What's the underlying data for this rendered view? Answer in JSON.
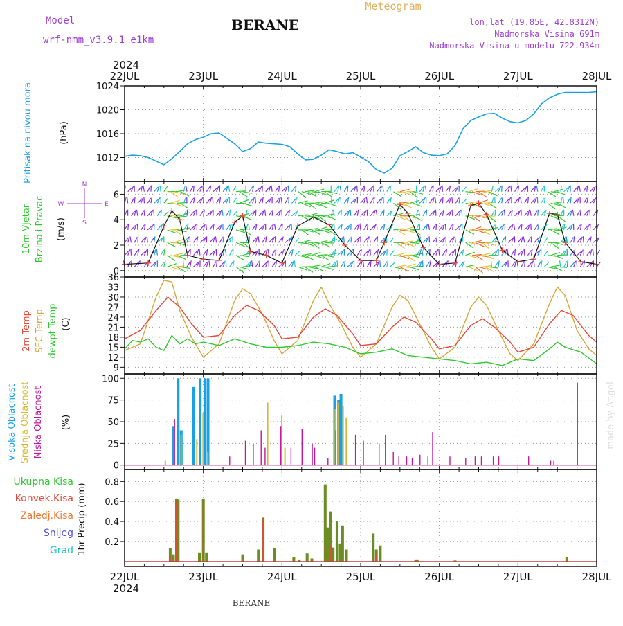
{
  "header": {
    "model_label": "Model",
    "model_name": "wrf-nmm_v3.9.1  e1km",
    "station": "BERANE",
    "meteogram": "Meteogram",
    "lonlat": "lon,lat (19.85E, 42.8312N)",
    "elevation": "Nadmorska Visina 691m",
    "model_elevation": "Nadmorska Visina u modelu 722.934m",
    "year_top": "2024",
    "year_bottom": "2024",
    "footer_station": "BERANE",
    "watermark": "made by Angel"
  },
  "colors": {
    "pressure": "#1aa0e6",
    "temp2m": "#e8473a",
    "sfc": "#d9a53a",
    "dewpt": "#2ec82e",
    "high_cloud": "#1aa0e6",
    "mid_cloud": "#d9b830",
    "low_cloud": "#c0189e",
    "wind_purple": "#8a2be2",
    "precip_total": "#2ec82e",
    "precip_conv": "#e8473a",
    "snow": "#5050e6",
    "graupel": "#20c8c8",
    "header_purple": "#a040d0",
    "header_gold": "#e0b060"
  },
  "chart_data": [
    {
      "type": "line",
      "title": "Pritisak na nivou mora",
      "ylabel": "(hPa)",
      "ylim": [
        1008,
        1024
      ],
      "yticks": [
        1012,
        1016,
        1020,
        1024
      ],
      "x_labels": [
        "22JUL",
        "23JUL",
        "24JUL",
        "25JUL",
        "26JUL",
        "27JUL",
        "28JUL"
      ],
      "series": [
        {
          "x": [
            0,
            0.1,
            0.2,
            0.3,
            0.4,
            0.5,
            0.6,
            0.7,
            0.8,
            0.9,
            1.0,
            1.1,
            1.2,
            1.3,
            1.4,
            1.5,
            1.6,
            1.7,
            1.8,
            1.9,
            2.0,
            2.1,
            2.2,
            2.3,
            2.4,
            2.5,
            2.6,
            2.7,
            2.8,
            2.9,
            3.0,
            3.1,
            3.2,
            3.3,
            3.4,
            3.5,
            3.6,
            3.7,
            3.8,
            3.9,
            4.0,
            4.1,
            4.2,
            4.3,
            4.4,
            4.5,
            4.6,
            4.7,
            4.8,
            4.9,
            5.0,
            5.1,
            5.2,
            5.3,
            5.4,
            5.5,
            5.6,
            5.7,
            5.8,
            5.9,
            6.0
          ],
          "values": [
            1012.2,
            1012.4,
            1012.3,
            1012.0,
            1011.4,
            1010.8,
            1011.8,
            1013.0,
            1014.3,
            1015.0,
            1015.4,
            1016.0,
            1016.1,
            1015.2,
            1014.3,
            1013.0,
            1013.5,
            1014.6,
            1014.4,
            1014.3,
            1014.2,
            1013.8,
            1012.6,
            1011.6,
            1011.7,
            1012.4,
            1013.3,
            1013.0,
            1012.6,
            1012.8,
            1012.1,
            1011.3,
            1010.0,
            1009.4,
            1010.2,
            1012.3,
            1013.0,
            1013.8,
            1012.8,
            1012.4,
            1012.3,
            1012.6,
            1014.0,
            1016.8,
            1018.2,
            1018.8,
            1019.3,
            1019.4,
            1018.6,
            1018.0,
            1017.8,
            1018.2,
            1019.3,
            1021.0,
            1022.0,
            1022.6,
            1022.9,
            1022.9,
            1022.9,
            1022.9,
            1023.0
          ]
        }
      ]
    },
    {
      "type": "line",
      "title": "10m Vjetar Brzina i Pravac",
      "ylabel": "(m/s)",
      "ylim": [
        -0.5,
        7
      ],
      "yticks": [
        0,
        2,
        4,
        6
      ],
      "compass": [
        "N",
        "W",
        "E",
        "S"
      ],
      "series": [
        {
          "name": "speed",
          "x": [
            0,
            0.3,
            0.5,
            0.6,
            0.7,
            0.8,
            1.0,
            1.2,
            1.4,
            1.5,
            1.6,
            1.8,
            2.0,
            2.2,
            2.4,
            2.6,
            2.8,
            3.0,
            3.2,
            3.3,
            3.5,
            3.6,
            3.8,
            4.0,
            4.2,
            4.4,
            4.5,
            4.6,
            4.8,
            5.0,
            5.2,
            5.4,
            5.5,
            5.6,
            5.8,
            6.0
          ],
          "values": [
            0.5,
            0.6,
            3.5,
            4.7,
            4.0,
            1.2,
            0.9,
            0.8,
            3.8,
            4.3,
            1.5,
            1.2,
            0.6,
            3.5,
            4.2,
            3.6,
            2.0,
            0.8,
            0.8,
            2.2,
            5.2,
            4.5,
            1.8,
            0.5,
            0.6,
            5.1,
            5.3,
            4.4,
            1.6,
            0.7,
            0.9,
            4.5,
            4.4,
            2.2,
            0.7,
            0.5
          ]
        }
      ]
    },
    {
      "type": "line",
      "ylabel": "(C)",
      "ylim": [
        7,
        36
      ],
      "yticks": [
        9,
        12,
        15,
        18,
        21,
        24,
        27,
        30,
        33,
        36
      ],
      "series": [
        {
          "name": "2m Temp",
          "x": [
            0,
            0.2,
            0.4,
            0.55,
            0.7,
            0.85,
            1.0,
            1.2,
            1.4,
            1.55,
            1.7,
            1.9,
            2.0,
            2.2,
            2.4,
            2.55,
            2.7,
            2.9,
            3.0,
            3.2,
            3.4,
            3.55,
            3.7,
            3.9,
            4.0,
            4.2,
            4.4,
            4.55,
            4.7,
            4.9,
            5.0,
            5.2,
            5.4,
            5.55,
            5.7,
            5.9,
            6.0
          ],
          "values": [
            17.5,
            20.0,
            26.0,
            30.0,
            27.0,
            22.0,
            18.0,
            18.5,
            24.5,
            27.5,
            26.0,
            21.5,
            17.5,
            18.0,
            24.0,
            26.5,
            24.5,
            19.0,
            15.5,
            16.0,
            21.0,
            24.0,
            22.5,
            17.5,
            14.5,
            15.5,
            21.5,
            23.5,
            21.0,
            16.5,
            13.5,
            15.0,
            22.0,
            26.0,
            24.5,
            18.5,
            16.5
          ]
        },
        {
          "name": "SFC Temp",
          "x": [
            0,
            0.2,
            0.4,
            0.5,
            0.6,
            0.7,
            0.85,
            1.0,
            1.2,
            1.4,
            1.5,
            1.6,
            1.75,
            1.9,
            2.0,
            2.2,
            2.4,
            2.5,
            2.6,
            2.75,
            2.9,
            3.0,
            3.2,
            3.4,
            3.5,
            3.6,
            3.75,
            3.9,
            4.0,
            4.2,
            4.4,
            4.5,
            4.6,
            4.75,
            4.9,
            5.0,
            5.2,
            5.4,
            5.5,
            5.6,
            5.75,
            5.9,
            6.0
          ],
          "values": [
            14.0,
            16.0,
            30.0,
            35.0,
            34.5,
            26.0,
            18.0,
            12.0,
            16.0,
            29.0,
            32.5,
            31.0,
            25.0,
            17.0,
            13.0,
            17.0,
            29.0,
            33.0,
            28.0,
            22.0,
            15.0,
            12.0,
            16.0,
            27.0,
            30.5,
            29.0,
            22.0,
            15.0,
            11.5,
            15.0,
            27.0,
            30.0,
            27.5,
            20.0,
            13.0,
            11.0,
            16.0,
            28.0,
            33.0,
            30.5,
            20.0,
            14.5,
            12.5
          ]
        },
        {
          "name": "dewpt Temp",
          "x": [
            0,
            0.1,
            0.2,
            0.3,
            0.4,
            0.5,
            0.6,
            0.7,
            0.8,
            0.9,
            1.0,
            1.2,
            1.4,
            1.6,
            1.8,
            2.0,
            2.2,
            2.4,
            2.6,
            2.8,
            3.0,
            3.2,
            3.4,
            3.6,
            3.8,
            4.0,
            4.2,
            4.4,
            4.6,
            4.8,
            5.0,
            5.2,
            5.4,
            5.5,
            5.6,
            5.8,
            6.0
          ],
          "values": [
            14.5,
            17.0,
            16.5,
            17.5,
            15.0,
            14.0,
            18.5,
            16.0,
            17.5,
            16.0,
            16.5,
            15.5,
            17.5,
            16.0,
            15.0,
            15.0,
            15.5,
            16.5,
            16.0,
            15.0,
            13.0,
            13.5,
            14.5,
            12.5,
            12.0,
            11.5,
            11.0,
            10.0,
            10.5,
            9.5,
            11.5,
            11.0,
            14.5,
            16.5,
            15.0,
            13.5,
            10.0
          ]
        }
      ]
    },
    {
      "type": "bar",
      "ylabel": "(%)",
      "ylim": [
        -5,
        105
      ],
      "yticks": [
        0,
        25,
        50,
        75,
        100
      ],
      "series": [
        {
          "name": "Visoka Oblacnost",
          "x": [
            0.62,
            0.68,
            0.72,
            0.88,
            0.96,
            1.02,
            1.06,
            2.67,
            2.72,
            2.75
          ],
          "values": [
            45,
            100,
            40,
            90,
            100,
            100,
            100,
            80,
            75,
            82
          ]
        },
        {
          "name": "Srednja Oblacnost",
          "x": [
            0.5,
            0.7,
            0.9,
            0.98,
            1.04,
            1.8,
            1.98,
            2.02,
            2.66,
            2.7,
            2.76,
            2.8
          ],
          "values": [
            5,
            35,
            30,
            60,
            15,
            72,
            57,
            20,
            65,
            72,
            68,
            55
          ]
        },
        {
          "name": "Niska Oblacnost",
          "x": [
            0.6,
            1.3,
            1.5,
            1.6,
            1.7,
            1.75,
            1.95,
            2.08,
            2.22,
            2.35,
            2.38,
            2.55,
            2.65,
            2.9,
            3.0,
            3.2,
            3.28,
            3.38,
            3.45,
            3.55,
            3.62,
            3.72,
            3.82,
            3.88,
            4.1,
            4.3,
            4.42,
            4.5,
            4.65,
            4.72,
            5.1,
            5.38,
            5.42,
            5.72
          ],
          "values": [
            53,
            10,
            28,
            25,
            40,
            20,
            45,
            20,
            42,
            25,
            20,
            8,
            40,
            35,
            28,
            25,
            35,
            15,
            10,
            10,
            8,
            12,
            10,
            38,
            10,
            8,
            10,
            10,
            10,
            10,
            10,
            5,
            5,
            95
          ]
        }
      ]
    },
    {
      "type": "bar",
      "ylabel": "1hr Precip (mm)",
      "ylim": [
        -0.05,
        0.92
      ],
      "yticks": [
        0.2,
        0.4,
        0.6,
        0.8
      ],
      "x_labels": [
        "22JUL",
        "23JUL",
        "24JUL",
        "25JUL",
        "26JUL",
        "27JUL",
        "28JUL"
      ],
      "series": [
        {
          "name": "Ukupna Kisa",
          "x": [
            0.58,
            0.62,
            0.66,
            0.68,
            0.95,
            1.0,
            1.04,
            1.5,
            1.7,
            1.76,
            1.9,
            2.15,
            2.22,
            2.32,
            2.38,
            2.55,
            2.58,
            2.62,
            2.65,
            2.7,
            2.74,
            2.77,
            2.82,
            3.16,
            3.2,
            3.25,
            3.7,
            3.72,
            4.2,
            5.62
          ],
          "values": [
            0.13,
            0.07,
            0.63,
            0.62,
            0.09,
            0.63,
            0.09,
            0.07,
            0.12,
            0.44,
            0.13,
            0.04,
            0.02,
            0.08,
            0.03,
            0.77,
            0.34,
            0.5,
            0.14,
            0.4,
            0.18,
            0.36,
            0.12,
            0.28,
            0.12,
            0.16,
            0.02,
            0.02,
            0.01,
            0.04
          ]
        },
        {
          "name": "Konvek.Kisa",
          "x": [
            0.58,
            0.66,
            0.95,
            1.0,
            1.76,
            2.55,
            2.62,
            3.2
          ],
          "values": [
            0.05,
            0.6,
            0.05,
            0.6,
            0.42,
            0.2,
            0.15,
            0.06
          ]
        },
        {
          "name": "Zaledj.Kisa",
          "x": [],
          "values": []
        },
        {
          "name": "Snijeg",
          "x": [],
          "values": []
        },
        {
          "name": "Grad",
          "x": [],
          "values": []
        }
      ]
    }
  ]
}
